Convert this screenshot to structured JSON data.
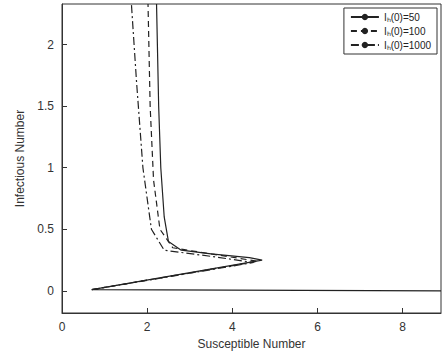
{
  "chart_data": {
    "type": "line",
    "x_label": "Susceptible Number",
    "y_label": "Infectious Number",
    "xlim": [
      0,
      8.9
    ],
    "ylim": [
      -0.18,
      2.33
    ],
    "xticks": [
      0,
      2,
      4,
      6,
      8
    ],
    "yticks": [
      0,
      0.5,
      1,
      1.5,
      2
    ],
    "grid": false,
    "legend": "upper right",
    "series": [
      {
        "name": "Iₕ(0)=50",
        "color": "#222222",
        "line_style": "solid",
        "x": [
          8.9,
          0.7,
          4.7,
          4.4,
          3.5,
          2.8,
          2.5,
          2.4,
          2.32,
          2.27,
          2.24,
          2.22
        ],
        "values": [
          0.0,
          0.01,
          0.25,
          0.27,
          0.3,
          0.33,
          0.4,
          0.6,
          1.0,
          1.5,
          2.0,
          2.33
        ]
      },
      {
        "name": "Iₕ(0)=100",
        "color": "#222222",
        "line_style": "dashed",
        "x": [
          0.7,
          4.6,
          3.5,
          2.6,
          2.3,
          2.15,
          2.07,
          2.02
        ],
        "values": [
          0.01,
          0.24,
          0.3,
          0.35,
          0.5,
          0.9,
          1.5,
          2.33
        ]
      },
      {
        "name": "Iₕ(0)=1000",
        "color": "#222222",
        "line_style": "dashdot",
        "x": [
          0.7,
          4.5,
          3.5,
          2.4,
          2.1,
          1.9,
          1.75,
          1.63
        ],
        "values": [
          0.01,
          0.23,
          0.28,
          0.33,
          0.5,
          1.0,
          1.7,
          2.33
        ]
      }
    ]
  }
}
